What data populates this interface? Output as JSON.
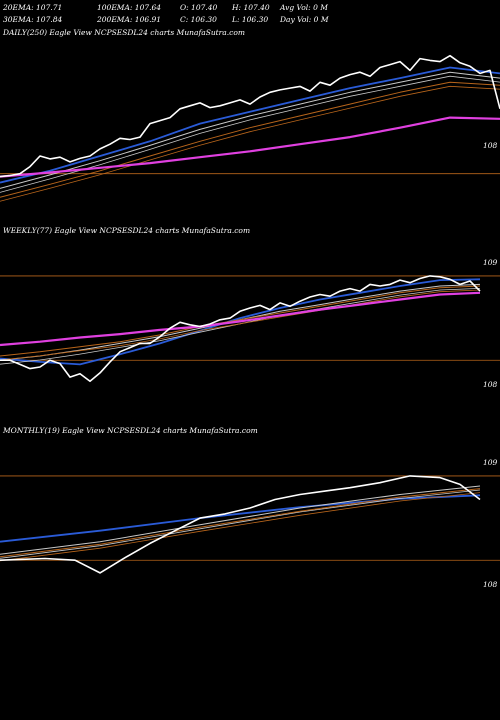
{
  "header": {
    "row1": [
      "20EMA: 107.71",
      "100EMA: 107.64",
      "O: 107.40",
      "H: 107.40",
      "Avg Vol: 0  M"
    ],
    "row2": [
      "30EMA: 107.84",
      "200EMA: 106.91",
      "C: 106.30",
      "L: 106.30",
      "Day Vol: 0  M"
    ]
  },
  "colors": {
    "background": "#000000",
    "price": "#ffffff",
    "ema_blue": "#2a5bd7",
    "ema_magenta": "#e040e0",
    "ema_orange": "#b8651b",
    "ema_gray": "#c8c8c8",
    "level_line": "#b8651b"
  },
  "chart_data": [
    {
      "type": "line",
      "title": "DAILY(250) Eagle  View  NCPSESDL24  charts MunafaSutra.com",
      "y_tick_labels": [
        "108"
      ],
      "series": [
        {
          "role": "price",
          "color": "#ffffff",
          "x": [
            0,
            10,
            20,
            30,
            40,
            50,
            60,
            70,
            80,
            90,
            100,
            110,
            120,
            130,
            140,
            150,
            160,
            170,
            180,
            190,
            200,
            210,
            220,
            230,
            240,
            250,
            260,
            270,
            280,
            290,
            300,
            310,
            320,
            330,
            340,
            350,
            360,
            370,
            380,
            390,
            400,
            410,
            420,
            430,
            440,
            450,
            460,
            470,
            480,
            490,
            500
          ],
          "y": [
            107.95,
            107.97,
            108.0,
            108.12,
            108.3,
            108.25,
            108.28,
            108.2,
            108.26,
            108.3,
            108.42,
            108.5,
            108.6,
            108.58,
            108.62,
            108.85,
            108.9,
            108.95,
            109.1,
            109.15,
            109.2,
            109.12,
            109.15,
            109.2,
            109.25,
            109.18,
            109.3,
            109.38,
            109.42,
            109.45,
            109.48,
            109.4,
            109.55,
            109.5,
            109.62,
            109.68,
            109.72,
            109.65,
            109.8,
            109.85,
            109.9,
            109.75,
            109.95,
            109.92,
            109.9,
            110.0,
            109.88,
            109.82,
            109.7,
            109.75,
            109.1
          ]
        },
        {
          "role": "ema-blue",
          "color": "#2a5bd7",
          "x": [
            0,
            50,
            100,
            150,
            200,
            250,
            300,
            350,
            400,
            450,
            500
          ],
          "y": [
            107.85,
            108.05,
            108.3,
            108.55,
            108.85,
            109.05,
            109.25,
            109.45,
            109.62,
            109.8,
            109.7
          ]
        },
        {
          "role": "ema-gray",
          "color": "#c8c8c8",
          "x": [
            0,
            50,
            100,
            150,
            200,
            250,
            300,
            350,
            400,
            450,
            500
          ],
          "y": [
            107.75,
            107.98,
            108.22,
            108.48,
            108.75,
            108.98,
            109.18,
            109.38,
            109.55,
            109.72,
            109.62
          ]
        },
        {
          "role": "ema-orange",
          "color": "#b8651b",
          "x": [
            0,
            50,
            100,
            150,
            200,
            250,
            300,
            350,
            400,
            450,
            500
          ],
          "y": [
            107.6,
            107.82,
            108.05,
            108.3,
            108.55,
            108.78,
            108.98,
            109.18,
            109.38,
            109.55,
            109.5
          ]
        },
        {
          "role": "ema-magenta",
          "color": "#e040e0",
          "x": [
            0,
            50,
            100,
            150,
            200,
            250,
            300,
            350,
            400,
            450,
            500
          ],
          "y": [
            107.95,
            108.02,
            108.1,
            108.18,
            108.28,
            108.38,
            108.5,
            108.62,
            108.78,
            108.95,
            108.93
          ]
        }
      ],
      "ylim": [
        107.3,
        110.3
      ],
      "hline": 108
    },
    {
      "type": "line",
      "title": "WEEKLY(77) Eagle  View  NCPSESDL24  charts MunafaSutra.com",
      "y_tick_labels": [
        "109",
        "108"
      ],
      "series": [
        {
          "role": "price",
          "color": "#ffffff",
          "x": [
            0,
            10,
            20,
            30,
            40,
            50,
            60,
            70,
            80,
            90,
            100,
            110,
            120,
            130,
            140,
            150,
            160,
            170,
            180,
            190,
            200,
            210,
            220,
            230,
            240,
            250,
            260,
            270,
            280,
            290,
            300,
            310,
            320,
            330,
            340,
            350,
            360,
            370,
            380,
            390,
            400,
            410,
            420,
            430,
            440,
            450,
            460,
            470,
            480
          ],
          "y": [
            108.0,
            108.0,
            107.95,
            107.9,
            107.92,
            108.0,
            107.96,
            107.8,
            107.84,
            107.75,
            107.85,
            107.98,
            108.1,
            108.15,
            108.2,
            108.2,
            108.28,
            108.38,
            108.45,
            108.42,
            108.4,
            108.43,
            108.48,
            108.5,
            108.58,
            108.62,
            108.65,
            108.6,
            108.68,
            108.64,
            108.7,
            108.75,
            108.78,
            108.76,
            108.82,
            108.85,
            108.82,
            108.9,
            108.88,
            108.9,
            108.95,
            108.92,
            108.97,
            109.0,
            108.99,
            108.96,
            108.9,
            108.94,
            108.82
          ]
        },
        {
          "role": "ema-blue",
          "color": "#2a5bd7",
          "x": [
            0,
            40,
            80,
            120,
            160,
            200,
            240,
            280,
            320,
            360,
            400,
            440,
            480
          ],
          "y": [
            108.02,
            107.98,
            107.95,
            108.07,
            108.2,
            108.35,
            108.5,
            108.62,
            108.72,
            108.8,
            108.88,
            108.95,
            108.96
          ]
        },
        {
          "role": "ema-gray",
          "color": "#c8c8c8",
          "x": [
            0,
            40,
            80,
            120,
            160,
            200,
            240,
            280,
            320,
            360,
            400,
            440,
            480
          ],
          "y": [
            108.0,
            108.05,
            108.12,
            108.2,
            108.28,
            108.38,
            108.48,
            108.58,
            108.66,
            108.74,
            108.82,
            108.88,
            108.9
          ]
        },
        {
          "role": "ema-orange",
          "color": "#b8651b",
          "x": [
            0,
            40,
            80,
            120,
            160,
            200,
            240,
            280,
            320,
            360,
            400,
            440,
            480
          ],
          "y": [
            108.05,
            108.1,
            108.16,
            108.22,
            108.3,
            108.4,
            108.48,
            108.56,
            108.64,
            108.72,
            108.8,
            108.86,
            108.88
          ]
        },
        {
          "role": "ema-magenta",
          "color": "#e040e0",
          "x": [
            0,
            40,
            80,
            120,
            160,
            200,
            240,
            280,
            320,
            360,
            400,
            440,
            480
          ],
          "y": [
            108.18,
            108.22,
            108.27,
            108.31,
            108.36,
            108.4,
            108.46,
            108.53,
            108.6,
            108.66,
            108.72,
            108.78,
            108.8
          ]
        }
      ],
      "ylim": [
        107.35,
        109.45
      ],
      "hlines": [
        109,
        108
      ]
    },
    {
      "type": "line",
      "title": "MONTHLY(19) Eagle  View  NCPSESDL24  charts MunafaSutra.com",
      "y_tick_labels": [
        "109",
        "108"
      ],
      "series": [
        {
          "role": "price",
          "color": "#ffffff",
          "x": [
            0,
            20,
            45,
            75,
            100,
            125,
            150,
            175,
            200,
            225,
            250,
            275,
            300,
            325,
            350,
            380,
            410,
            440,
            460,
            480
          ],
          "y": [
            108.0,
            108.01,
            108.02,
            108.0,
            107.85,
            108.03,
            108.2,
            108.35,
            108.5,
            108.55,
            108.62,
            108.72,
            108.78,
            108.82,
            108.86,
            108.92,
            109.0,
            108.98,
            108.9,
            108.72
          ]
        },
        {
          "role": "ema-blue",
          "color": "#2a5bd7",
          "x": [
            0,
            100,
            200,
            300,
            400,
            480
          ],
          "y": [
            108.22,
            108.35,
            108.5,
            108.63,
            108.73,
            108.77
          ]
        },
        {
          "role": "ema-gray",
          "color": "#c8c8c8",
          "x": [
            0,
            100,
            200,
            300,
            400,
            480
          ],
          "y": [
            108.07,
            108.22,
            108.42,
            108.62,
            108.78,
            108.88
          ]
        },
        {
          "role": "ema-orange",
          "color": "#b8651b",
          "x": [
            0,
            100,
            200,
            300,
            400,
            480
          ],
          "y": [
            108.04,
            108.19,
            108.39,
            108.58,
            108.75,
            108.85
          ]
        }
      ],
      "ylim": [
        107.35,
        109.45
      ],
      "hlines": [
        109,
        108
      ]
    }
  ]
}
